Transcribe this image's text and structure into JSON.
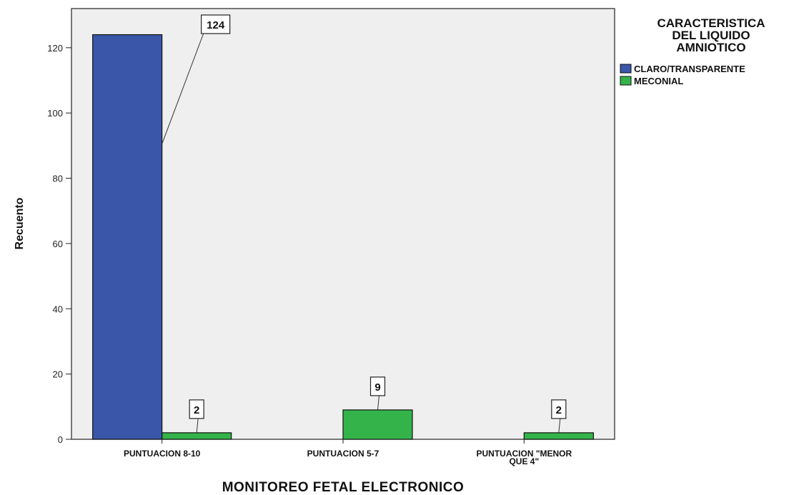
{
  "chart_data": {
    "type": "bar",
    "title": "",
    "xlabel": "MONITOREO FETAL ELECTRONICO",
    "ylabel": "Recuento",
    "ylim": [
      0,
      132
    ],
    "yticks": [
      0,
      20,
      40,
      60,
      80,
      100,
      120
    ],
    "grid": false,
    "legend_position": "top-right",
    "legend_title": [
      "CARACTERISTICA",
      "DEL LIQUIDO",
      "AMNIOTICO"
    ],
    "categories": [
      [
        "PUNTUACION 8-10"
      ],
      [
        "PUNTUACION 5-7"
      ],
      [
        "PUNTUACION \"MENOR",
        "QUE 4\""
      ]
    ],
    "series": [
      {
        "name": "CLARO/TRANSPARENTE",
        "color": "#3a56a8",
        "values": [
          124,
          null,
          null
        ]
      },
      {
        "name": "MECONIAL",
        "color": "#34b34a",
        "values": [
          2,
          9,
          2
        ]
      }
    ],
    "data_labels": [
      "124",
      "2",
      "9",
      "2"
    ]
  }
}
